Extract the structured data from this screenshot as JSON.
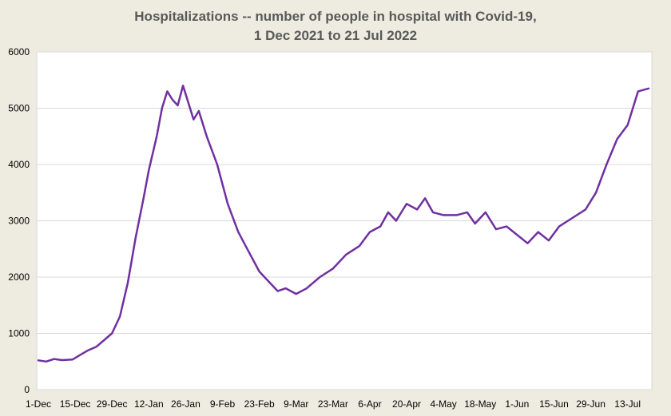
{
  "chart_data": {
    "type": "line",
    "title_line1": "Hospitalizations -- number of people in hospital with Covid-19,",
    "title_line2": "1 Dec 2021 to 21 Jul 2022",
    "xlabel": "",
    "ylabel": "",
    "ylim": [
      0,
      6000
    ],
    "yticks": [
      "0",
      "1000",
      "2000",
      "3000",
      "4000",
      "5000",
      "6000"
    ],
    "xticks": [
      "1-Dec",
      "15-Dec",
      "29-Dec",
      "12-Jan",
      "26-Jan",
      "9-Feb",
      "23-Feb",
      "9-Mar",
      "23-Mar",
      "6-Apr",
      "20-Apr",
      "4-May",
      "18-May",
      "1-Jun",
      "15-Jun",
      "29-Jun",
      "13-Jul"
    ],
    "grid": true,
    "legend": "none",
    "series": [
      {
        "color": "#7030a0",
        "points": [
          [
            "2021-12-01",
            520
          ],
          [
            "2021-12-04",
            500
          ],
          [
            "2021-12-07",
            545
          ],
          [
            "2021-12-10",
            525
          ],
          [
            "2021-12-14",
            535
          ],
          [
            "2021-12-17",
            620
          ],
          [
            "2021-12-20",
            700
          ],
          [
            "2021-12-23",
            760
          ],
          [
            "2021-12-26",
            880
          ],
          [
            "2021-12-29",
            1000
          ],
          [
            "2022-01-01",
            1300
          ],
          [
            "2022-01-04",
            1900
          ],
          [
            "2022-01-07",
            2700
          ],
          [
            "2022-01-10",
            3400
          ],
          [
            "2022-01-12",
            3900
          ],
          [
            "2022-01-15",
            4500
          ],
          [
            "2022-01-17",
            5000
          ],
          [
            "2022-01-19",
            5300
          ],
          [
            "2022-01-21",
            5150
          ],
          [
            "2022-01-23",
            5050
          ],
          [
            "2022-01-25",
            5400
          ],
          [
            "2022-01-27",
            5100
          ],
          [
            "2022-01-29",
            4800
          ],
          [
            "2022-01-31",
            4950
          ],
          [
            "2022-02-03",
            4500
          ],
          [
            "2022-02-07",
            4000
          ],
          [
            "2022-02-11",
            3300
          ],
          [
            "2022-02-15",
            2800
          ],
          [
            "2022-02-19",
            2450
          ],
          [
            "2022-02-23",
            2100
          ],
          [
            "2022-02-27",
            1900
          ],
          [
            "2022-03-02",
            1750
          ],
          [
            "2022-03-05",
            1800
          ],
          [
            "2022-03-09",
            1700
          ],
          [
            "2022-03-13",
            1800
          ],
          [
            "2022-03-18",
            2000
          ],
          [
            "2022-03-23",
            2150
          ],
          [
            "2022-03-28",
            2400
          ],
          [
            "2022-04-02",
            2550
          ],
          [
            "2022-04-06",
            2800
          ],
          [
            "2022-04-10",
            2900
          ],
          [
            "2022-04-13",
            3150
          ],
          [
            "2022-04-16",
            3000
          ],
          [
            "2022-04-20",
            3300
          ],
          [
            "2022-04-24",
            3200
          ],
          [
            "2022-04-27",
            3400
          ],
          [
            "2022-04-30",
            3150
          ],
          [
            "2022-05-04",
            3100
          ],
          [
            "2022-05-09",
            3100
          ],
          [
            "2022-05-13",
            3150
          ],
          [
            "2022-05-16",
            2950
          ],
          [
            "2022-05-20",
            3150
          ],
          [
            "2022-05-24",
            2850
          ],
          [
            "2022-05-28",
            2900
          ],
          [
            "2022-06-01",
            2750
          ],
          [
            "2022-06-05",
            2600
          ],
          [
            "2022-06-09",
            2800
          ],
          [
            "2022-06-13",
            2650
          ],
          [
            "2022-06-17",
            2900
          ],
          [
            "2022-06-22",
            3050
          ],
          [
            "2022-06-27",
            3200
          ],
          [
            "2022-07-01",
            3500
          ],
          [
            "2022-07-05",
            4000
          ],
          [
            "2022-07-09",
            4450
          ],
          [
            "2022-07-13",
            4700
          ],
          [
            "2022-07-17",
            5300
          ],
          [
            "2022-07-21",
            5350
          ]
        ]
      }
    ]
  }
}
